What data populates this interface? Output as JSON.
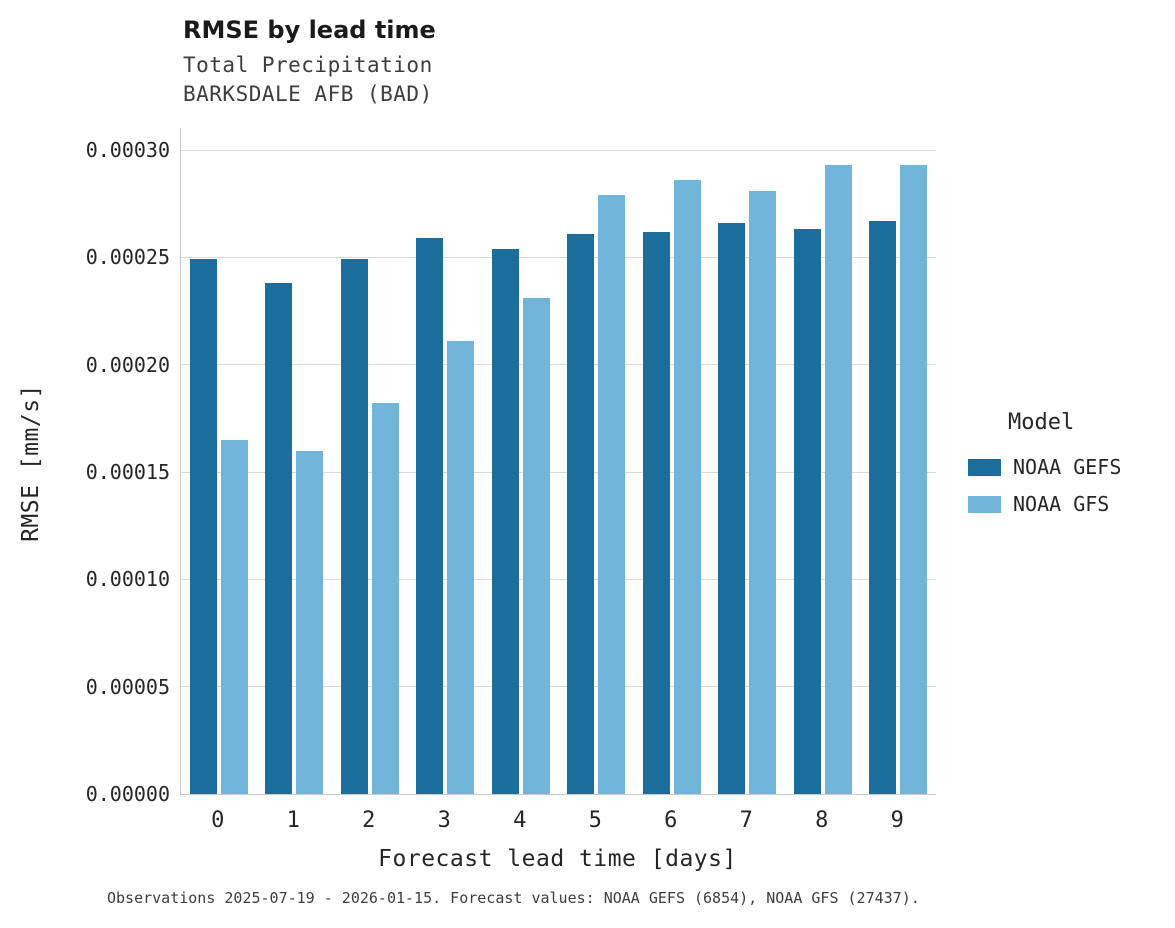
{
  "title": "RMSE by lead time",
  "subtitle1": "Total Precipitation",
  "subtitle2": "BARKSDALE AFB (BAD)",
  "axes": {
    "y_label": "RMSE [mm/s]",
    "x_label": "Forecast lead time [days]",
    "y_tick_labels": [
      "0.00000",
      "0.00005",
      "0.00010",
      "0.00015",
      "0.00020",
      "0.00025",
      "0.00030"
    ],
    "x_tick_labels": [
      "0",
      "1",
      "2",
      "3",
      "4",
      "5",
      "6",
      "7",
      "8",
      "9"
    ]
  },
  "legend": {
    "title": "Model",
    "entries": [
      {
        "label": "NOAA GEFS",
        "color": "#1b6d9b"
      },
      {
        "label": "NOAA GFS",
        "color": "#72b5da"
      }
    ]
  },
  "caption": "Observations 2025-07-19 - 2026-01-15. Forecast values: NOAA GEFS (6854), NOAA GFS (27437).",
  "colors": {
    "grid": "#d9d9d9",
    "noaa_gefs": "#1b6d9b",
    "noaa_gfs": "#72b5da"
  },
  "chart_data": {
    "type": "bar",
    "title": "RMSE by lead time",
    "subtitle": "Total Precipitation / BARKSDALE AFB (BAD)",
    "xlabel": "Forecast lead time [days]",
    "ylabel": "RMSE [mm/s]",
    "categories": [
      0,
      1,
      2,
      3,
      4,
      5,
      6,
      7,
      8,
      9
    ],
    "series": [
      {
        "name": "NOAA GEFS",
        "color": "#1b6d9b",
        "values": [
          0.000249,
          0.000238,
          0.000249,
          0.000259,
          0.000254,
          0.000261,
          0.000262,
          0.000266,
          0.000263,
          0.000267
        ]
      },
      {
        "name": "NOAA GFS",
        "color": "#72b5da",
        "values": [
          0.000165,
          0.00016,
          0.000182,
          0.000211,
          0.000231,
          0.000279,
          0.000286,
          0.000281,
          0.000293,
          0.000293
        ]
      }
    ],
    "ylim": [
      0,
      0.0003
    ],
    "ytick_step": 5e-05,
    "grid": true,
    "legend_position": "right"
  }
}
